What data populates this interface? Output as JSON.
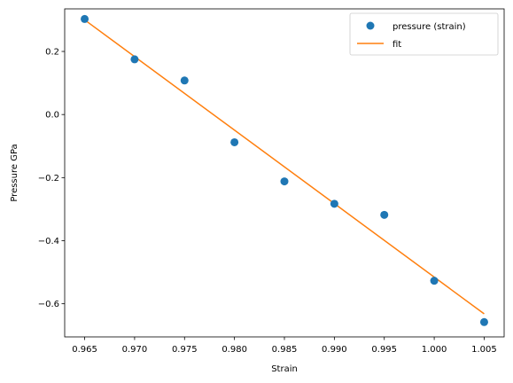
{
  "chart_data": {
    "type": "scatter",
    "title": "",
    "xlabel": "Strain",
    "ylabel": "Pressure GPa",
    "xlim": [
      0.963,
      1.007
    ],
    "ylim": [
      -0.705,
      0.335
    ],
    "xticks": [
      0.965,
      0.97,
      0.975,
      0.98,
      0.985,
      0.99,
      0.995,
      1.0,
      1.005
    ],
    "xtick_labels": [
      "0.965",
      "0.970",
      "0.975",
      "0.980",
      "0.985",
      "0.990",
      "0.995",
      "1.000",
      "1.005"
    ],
    "yticks": [
      -0.6,
      -0.4,
      -0.2,
      0.0,
      0.2
    ],
    "ytick_labels": [
      "−0.6",
      "−0.4",
      "−0.2",
      "0.0",
      "0.2"
    ],
    "grid": false,
    "legend_position": "top-right",
    "series": [
      {
        "name": "pressure (strain)",
        "kind": "scatter",
        "color": "#1f77b4",
        "x": [
          0.965,
          0.97,
          0.975,
          0.98,
          0.985,
          0.99,
          0.995,
          1.0,
          1.005
        ],
        "y": [
          0.303,
          0.175,
          0.108,
          -0.088,
          -0.212,
          -0.283,
          -0.318,
          -0.527,
          -0.658
        ]
      },
      {
        "name": "fit",
        "kind": "line",
        "color": "#ff7f0e",
        "x": [
          0.965,
          1.005
        ],
        "y": [
          0.3,
          -0.632
        ]
      }
    ]
  }
}
